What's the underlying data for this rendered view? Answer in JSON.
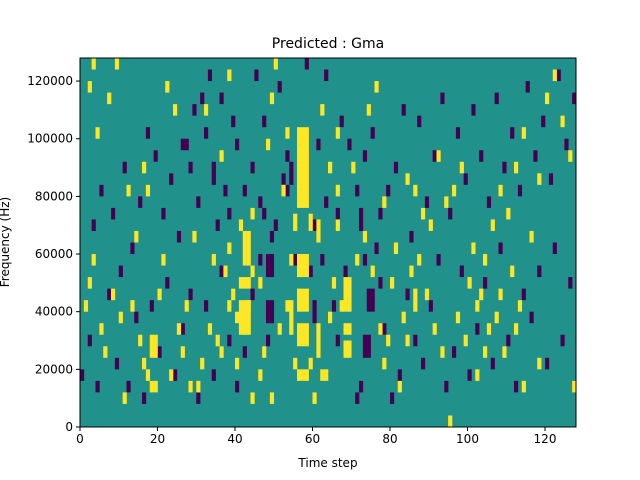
{
  "chart_data": {
    "type": "heatmap",
    "title": "Predicted : Gma",
    "xlabel": "Time step",
    "ylabel": "Frequency (Hz)",
    "xlim": [
      0,
      128
    ],
    "ylim": [
      0,
      128000
    ],
    "x_ticks": [
      0,
      20,
      40,
      60,
      80,
      100,
      120
    ],
    "y_ticks": [
      0,
      20000,
      40000,
      60000,
      80000,
      100000,
      120000
    ],
    "x_tick_labels": [
      "0",
      "20",
      "40",
      "60",
      "80",
      "100",
      "120"
    ],
    "y_tick_labels": [
      "0",
      "20000",
      "40000",
      "60000",
      "80000",
      "100000",
      "120000"
    ],
    "n_time_steps": 128,
    "n_frequency_bins": 64,
    "bin_hz": 2000,
    "value_levels": [
      -1,
      0,
      1
    ],
    "colors": {
      "low": "#440154",
      "mid": "#21918c",
      "high": "#fde725"
    },
    "high_cells": [
      [
        56,
        38,
        52
      ],
      [
        57,
        38,
        52
      ],
      [
        58,
        38,
        52
      ],
      [
        56,
        26,
        30
      ],
      [
        57,
        26,
        30
      ],
      [
        58,
        26,
        30
      ],
      [
        56,
        8,
        10
      ],
      [
        57,
        8,
        10
      ],
      [
        58,
        8,
        10
      ],
      [
        56,
        20,
        24
      ],
      [
        57,
        20,
        24
      ],
      [
        58,
        20,
        24
      ],
      [
        56,
        14,
        18
      ],
      [
        57,
        14,
        18
      ],
      [
        58,
        14,
        18
      ],
      [
        55,
        34,
        37
      ],
      [
        59,
        34,
        37
      ],
      [
        55,
        10,
        12
      ],
      [
        59,
        10,
        12
      ],
      [
        61,
        32,
        36
      ],
      [
        61,
        12,
        18
      ],
      [
        41,
        16,
        22
      ],
      [
        42,
        16,
        22
      ],
      [
        43,
        16,
        22
      ],
      [
        41,
        24,
        26
      ],
      [
        42,
        24,
        26
      ],
      [
        43,
        24,
        26
      ],
      [
        42,
        28,
        34
      ],
      [
        43,
        28,
        34
      ],
      [
        44,
        36,
        38
      ],
      [
        42,
        16,
        18
      ],
      [
        43,
        20,
        22
      ],
      [
        44,
        26,
        28
      ],
      [
        40,
        18,
        20
      ],
      [
        68,
        16,
        18
      ],
      [
        69,
        16,
        18
      ],
      [
        69,
        20,
        26
      ],
      [
        68,
        20,
        26
      ],
      [
        68,
        12,
        15
      ],
      [
        69,
        12,
        15
      ],
      [
        62,
        8,
        10
      ],
      [
        63,
        8,
        10
      ],
      [
        64,
        18,
        20
      ],
      [
        54,
        16,
        22
      ],
      [
        54,
        28,
        30
      ],
      [
        66,
        34,
        36
      ],
      [
        66,
        40,
        42
      ],
      [
        18,
        12,
        16
      ],
      [
        19,
        12,
        16
      ],
      [
        18,
        6,
        8
      ],
      [
        19,
        6,
        8
      ],
      [
        17,
        8,
        10
      ],
      [
        16,
        10,
        12
      ],
      [
        38,
        20,
        22
      ],
      [
        39,
        22,
        24
      ],
      [
        37,
        26,
        28
      ],
      [
        41,
        34,
        36
      ],
      [
        38,
        30,
        32
      ],
      [
        36,
        12,
        14
      ],
      [
        40,
        10,
        12
      ],
      [
        78,
        10,
        12
      ],
      [
        79,
        14,
        16
      ],
      [
        82,
        6,
        8
      ],
      [
        84,
        14,
        16
      ],
      [
        86,
        20,
        24
      ],
      [
        88,
        36,
        38
      ],
      [
        95,
        0,
        2
      ],
      [
        102,
        8,
        10
      ],
      [
        104,
        12,
        14
      ],
      [
        108,
        22,
        24
      ],
      [
        112,
        16,
        18
      ],
      [
        114,
        6,
        8
      ],
      [
        118,
        10,
        12
      ],
      [
        1,
        20,
        22
      ],
      [
        2,
        24,
        26
      ],
      [
        3,
        28,
        30
      ],
      [
        2,
        58,
        60
      ],
      [
        3,
        62,
        64
      ],
      [
        4,
        50,
        52
      ],
      [
        7,
        56,
        58
      ],
      [
        9,
        62,
        64
      ],
      [
        12,
        40,
        42
      ],
      [
        14,
        32,
        34
      ],
      [
        16,
        44,
        46
      ],
      [
        17,
        40,
        42
      ],
      [
        21,
        28,
        30
      ],
      [
        22,
        58,
        60
      ],
      [
        24,
        54,
        56
      ],
      [
        27,
        20,
        22
      ],
      [
        29,
        32,
        34
      ],
      [
        30,
        6,
        8
      ],
      [
        32,
        54,
        56
      ],
      [
        33,
        16,
        18
      ],
      [
        34,
        28,
        30
      ],
      [
        36,
        46,
        48
      ],
      [
        38,
        60,
        62
      ],
      [
        46,
        24,
        26
      ],
      [
        48,
        48,
        50
      ],
      [
        49,
        56,
        58
      ],
      [
        50,
        62,
        64
      ],
      [
        52,
        40,
        42
      ],
      [
        53,
        50,
        52
      ],
      [
        62,
        54,
        56
      ],
      [
        64,
        44,
        46
      ],
      [
        66,
        50,
        52
      ],
      [
        70,
        44,
        46
      ],
      [
        74,
        54,
        56
      ],
      [
        76,
        58,
        60
      ],
      [
        78,
        38,
        40
      ],
      [
        84,
        42,
        44
      ],
      [
        86,
        40,
        42
      ],
      [
        90,
        34,
        36
      ],
      [
        92,
        46,
        48
      ],
      [
        94,
        38,
        40
      ],
      [
        96,
        40,
        42
      ],
      [
        98,
        44,
        46
      ],
      [
        102,
        20,
        22
      ],
      [
        104,
        28,
        30
      ],
      [
        106,
        34,
        36
      ],
      [
        108,
        40,
        42
      ],
      [
        110,
        36,
        38
      ],
      [
        112,
        44,
        46
      ],
      [
        114,
        50,
        52
      ],
      [
        116,
        32,
        34
      ],
      [
        118,
        42,
        44
      ],
      [
        120,
        56,
        58
      ],
      [
        122,
        60,
        62
      ],
      [
        124,
        52,
        54
      ],
      [
        126,
        46,
        48
      ],
      [
        127,
        6,
        8
      ],
      [
        5,
        16,
        18
      ],
      [
        6,
        12,
        14
      ],
      [
        8,
        22,
        24
      ],
      [
        10,
        18,
        20
      ],
      [
        11,
        4,
        6
      ],
      [
        13,
        20,
        22
      ],
      [
        15,
        14,
        16
      ],
      [
        20,
        22,
        24
      ],
      [
        23,
        8,
        10
      ],
      [
        25,
        16,
        18
      ],
      [
        26,
        12,
        14
      ],
      [
        28,
        6,
        8
      ],
      [
        31,
        10,
        12
      ],
      [
        35,
        14,
        16
      ],
      [
        44,
        4,
        6
      ],
      [
        46,
        8,
        10
      ],
      [
        47,
        12,
        14
      ],
      [
        49,
        4,
        6
      ],
      [
        51,
        16,
        18
      ],
      [
        53,
        20,
        22
      ],
      [
        60,
        4,
        6
      ],
      [
        65,
        24,
        26
      ],
      [
        67,
        20,
        22
      ],
      [
        71,
        28,
        30
      ],
      [
        73,
        32,
        34
      ],
      [
        75,
        26,
        28
      ],
      [
        77,
        16,
        18
      ],
      [
        80,
        24,
        26
      ],
      [
        81,
        30,
        32
      ],
      [
        83,
        18,
        20
      ],
      [
        85,
        26,
        28
      ],
      [
        87,
        28,
        30
      ],
      [
        89,
        22,
        24
      ],
      [
        91,
        16,
        18
      ],
      [
        93,
        12,
        14
      ],
      [
        97,
        18,
        20
      ],
      [
        99,
        14,
        16
      ],
      [
        100,
        24,
        26
      ],
      [
        101,
        30,
        32
      ],
      [
        103,
        22,
        24
      ],
      [
        105,
        16,
        18
      ],
      [
        107,
        18,
        20
      ],
      [
        109,
        12,
        14
      ],
      [
        111,
        26,
        28
      ],
      [
        113,
        20,
        22
      ]
    ],
    "low_cells": [
      [
        48,
        18,
        22
      ],
      [
        49,
        18,
        22
      ],
      [
        48,
        26,
        30
      ],
      [
        49,
        26,
        30
      ],
      [
        49,
        32,
        34
      ],
      [
        47,
        36,
        38
      ],
      [
        48,
        14,
        16
      ],
      [
        53,
        46,
        48
      ],
      [
        54,
        42,
        46
      ],
      [
        53,
        40,
        42
      ],
      [
        60,
        18,
        22
      ],
      [
        59,
        26,
        28
      ],
      [
        60,
        34,
        36
      ],
      [
        62,
        28,
        30
      ],
      [
        65,
        20,
        22
      ],
      [
        66,
        36,
        38
      ],
      [
        68,
        26,
        28
      ],
      [
        66,
        14,
        16
      ],
      [
        73,
        12,
        16
      ],
      [
        74,
        12,
        16
      ],
      [
        74,
        20,
        24
      ],
      [
        75,
        20,
        24
      ],
      [
        73,
        28,
        30
      ],
      [
        76,
        30,
        32
      ],
      [
        72,
        34,
        38
      ],
      [
        77,
        24,
        26
      ],
      [
        71,
        4,
        6
      ],
      [
        72,
        6,
        8
      ],
      [
        80,
        4,
        6
      ],
      [
        82,
        8,
        10
      ],
      [
        78,
        16,
        18
      ],
      [
        84,
        22,
        24
      ],
      [
        26,
        48,
        50
      ],
      [
        27,
        48,
        50
      ],
      [
        29,
        54,
        56
      ],
      [
        31,
        56,
        58
      ],
      [
        33,
        60,
        62
      ],
      [
        35,
        34,
        36
      ],
      [
        37,
        40,
        42
      ],
      [
        39,
        52,
        54
      ],
      [
        44,
        44,
        46
      ],
      [
        46,
        38,
        40
      ],
      [
        50,
        34,
        36
      ],
      [
        52,
        42,
        44
      ],
      [
        55,
        28,
        30
      ],
      [
        61,
        48,
        50
      ],
      [
        63,
        38,
        40
      ],
      [
        67,
        52,
        54
      ],
      [
        69,
        48,
        50
      ],
      [
        71,
        40,
        42
      ],
      [
        73,
        46,
        48
      ],
      [
        75,
        50,
        52
      ],
      [
        77,
        36,
        38
      ],
      [
        79,
        40,
        42
      ],
      [
        81,
        44,
        46
      ],
      [
        83,
        54,
        56
      ],
      [
        85,
        32,
        34
      ],
      [
        87,
        52,
        54
      ],
      [
        89,
        38,
        40
      ],
      [
        91,
        46,
        48
      ],
      [
        93,
        56,
        58
      ],
      [
        95,
        36,
        38
      ],
      [
        97,
        50,
        52
      ],
      [
        99,
        42,
        44
      ],
      [
        101,
        54,
        56
      ],
      [
        103,
        46,
        48
      ],
      [
        105,
        38,
        40
      ],
      [
        107,
        56,
        58
      ],
      [
        109,
        44,
        46
      ],
      [
        111,
        50,
        52
      ],
      [
        113,
        40,
        42
      ],
      [
        115,
        58,
        60
      ],
      [
        117,
        46,
        48
      ],
      [
        119,
        52,
        54
      ],
      [
        121,
        42,
        44
      ],
      [
        123,
        60,
        62
      ],
      [
        125,
        48,
        50
      ],
      [
        127,
        56,
        58
      ],
      [
        0,
        8,
        10
      ],
      [
        2,
        14,
        16
      ],
      [
        4,
        6,
        8
      ],
      [
        7,
        22,
        24
      ],
      [
        9,
        10,
        12
      ],
      [
        10,
        26,
        28
      ],
      [
        12,
        6,
        8
      ],
      [
        14,
        18,
        20
      ],
      [
        16,
        4,
        6
      ],
      [
        18,
        20,
        22
      ],
      [
        20,
        12,
        14
      ],
      [
        22,
        24,
        26
      ],
      [
        24,
        8,
        10
      ],
      [
        26,
        16,
        18
      ],
      [
        28,
        22,
        24
      ],
      [
        30,
        4,
        6
      ],
      [
        32,
        20,
        22
      ],
      [
        34,
        8,
        10
      ],
      [
        36,
        26,
        28
      ],
      [
        38,
        14,
        16
      ],
      [
        40,
        6,
        8
      ],
      [
        42,
        12,
        14
      ],
      [
        44,
        22,
        24
      ],
      [
        46,
        28,
        30
      ],
      [
        86,
        14,
        16
      ],
      [
        88,
        10,
        12
      ],
      [
        90,
        20,
        22
      ],
      [
        92,
        28,
        30
      ],
      [
        94,
        6,
        8
      ],
      [
        96,
        12,
        14
      ],
      [
        98,
        26,
        28
      ],
      [
        100,
        8,
        10
      ],
      [
        102,
        16,
        18
      ],
      [
        104,
        24,
        26
      ],
      [
        106,
        10,
        12
      ],
      [
        108,
        30,
        32
      ],
      [
        110,
        14,
        16
      ],
      [
        112,
        6,
        8
      ],
      [
        114,
        22,
        24
      ],
      [
        116,
        18,
        20
      ],
      [
        118,
        26,
        28
      ],
      [
        120,
        10,
        12
      ],
      [
        122,
        30,
        32
      ],
      [
        124,
        14,
        16
      ],
      [
        126,
        24,
        26
      ],
      [
        3,
        34,
        36
      ],
      [
        5,
        40,
        42
      ],
      [
        8,
        36,
        38
      ],
      [
        11,
        44,
        46
      ],
      [
        13,
        30,
        32
      ],
      [
        15,
        38,
        40
      ],
      [
        17,
        50,
        52
      ],
      [
        19,
        46,
        48
      ],
      [
        21,
        36,
        38
      ],
      [
        23,
        42,
        44
      ],
      [
        25,
        32,
        34
      ],
      [
        28,
        44,
        46
      ],
      [
        30,
        38,
        40
      ],
      [
        32,
        50,
        52
      ],
      [
        34,
        42,
        46
      ],
      [
        36,
        56,
        58
      ],
      [
        38,
        36,
        38
      ],
      [
        40,
        48,
        50
      ],
      [
        42,
        40,
        42
      ],
      [
        45,
        60,
        62
      ],
      [
        47,
        52,
        54
      ],
      [
        51,
        58,
        60
      ],
      [
        58,
        62,
        64
      ],
      [
        63,
        60,
        62
      ]
    ]
  }
}
